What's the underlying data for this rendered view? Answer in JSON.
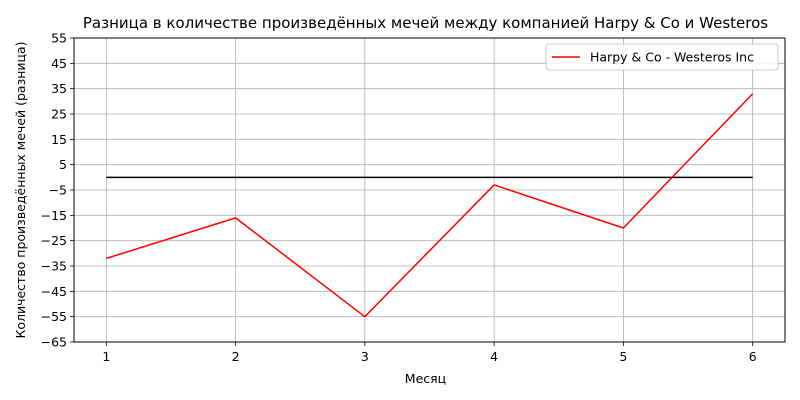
{
  "chart_data": {
    "type": "line",
    "title": "Разница в количестве произведённых мечей между компанией Harpy & Co и Westeros",
    "xlabel": "Месяц",
    "ylabel": "Количество произведённых мечей (разница)",
    "x": [
      1,
      2,
      3,
      4,
      5,
      6
    ],
    "xticks": [
      "1",
      "2",
      "3",
      "4",
      "5",
      "6"
    ],
    "xlim": [
      0.75,
      6.25
    ],
    "ylim": [
      -65,
      55
    ],
    "yticks": [
      -65,
      -55,
      -45,
      -35,
      -25,
      -15,
      -5,
      5,
      15,
      25,
      35,
      45,
      55
    ],
    "grid": true,
    "legend_position": "top-right",
    "series": [
      {
        "name": "Harpy & Co - Westeros Inc",
        "color": "#ff0000",
        "values": [
          -32,
          -16,
          -55,
          -3,
          -20,
          33
        ]
      }
    ],
    "reference_line": {
      "y": 0,
      "x_from": 1,
      "x_to": 6,
      "color": "#000000"
    }
  }
}
